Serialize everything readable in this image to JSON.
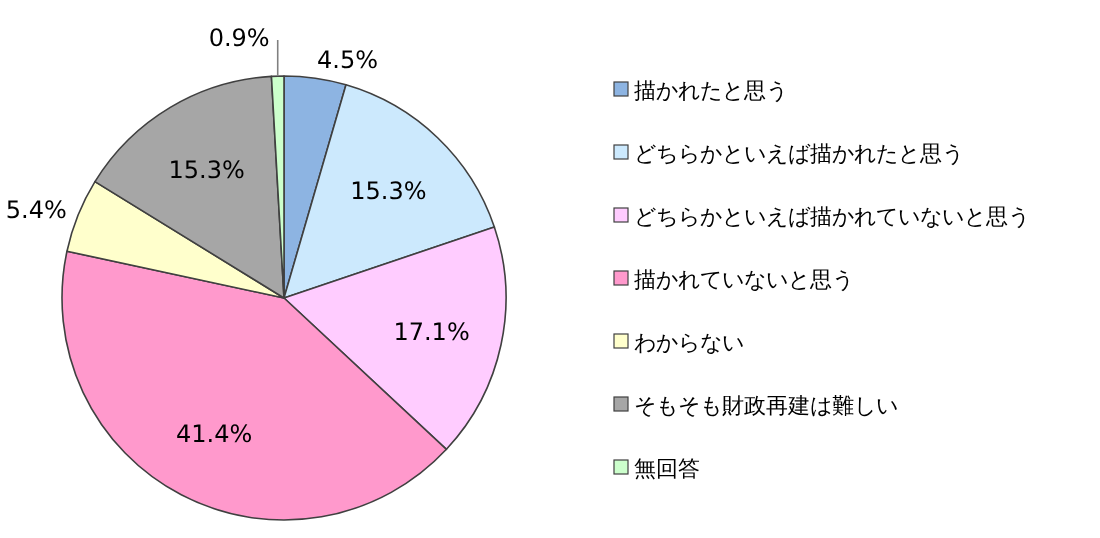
{
  "chart_data": {
    "type": "pie",
    "categories": [
      "描かれたと思う",
      "どちらかといえば描かれたと思う",
      "どちらかといえば描かれていないと思う",
      "描かれていないと思う",
      "わからない",
      "そもそも財政再建は難しい",
      "無回答"
    ],
    "values": [
      4.5,
      15.3,
      17.1,
      41.4,
      5.4,
      15.3,
      0.9
    ],
    "colors": [
      "#8db4e2",
      "#cce9fd",
      "#ffccff",
      "#ff99cc",
      "#ffffcc",
      "#a6a6a6",
      "#ccffcc"
    ],
    "value_labels": [
      "4.5%",
      "15.3%",
      "17.1%",
      "41.4%",
      "5.4%",
      "15.3%",
      "0.9%"
    ],
    "legend": "right"
  }
}
